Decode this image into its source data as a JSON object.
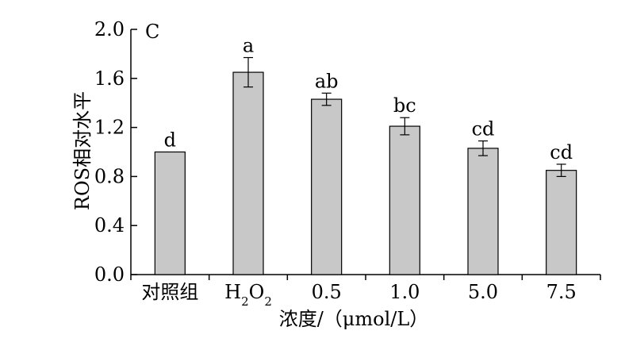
{
  "chart_data": {
    "type": "bar",
    "panel_label": "C",
    "categories": [
      "对照组",
      "H2O2",
      "0.5",
      "1.0",
      "5.0",
      "7.5"
    ],
    "values": [
      1.0,
      1.65,
      1.43,
      1.21,
      1.03,
      0.85
    ],
    "errors": [
      0.0,
      0.12,
      0.05,
      0.07,
      0.06,
      0.05
    ],
    "significance_labels": [
      "d",
      "a",
      "ab",
      "bc",
      "cd",
      "cd"
    ],
    "xlabel": "浓度/（μmol/L）",
    "ylabel": "ROS相对水平",
    "ylim": [
      0,
      2.0
    ],
    "yticks": [
      0.0,
      0.4,
      0.8,
      1.2,
      1.6,
      2.0
    ],
    "ytick_labels": [
      "0.0",
      "0.4",
      "0.8",
      "1.2",
      "1.6",
      "2.0"
    ],
    "bar_color": "#c8c8c8",
    "grid": false,
    "legend": "none"
  }
}
